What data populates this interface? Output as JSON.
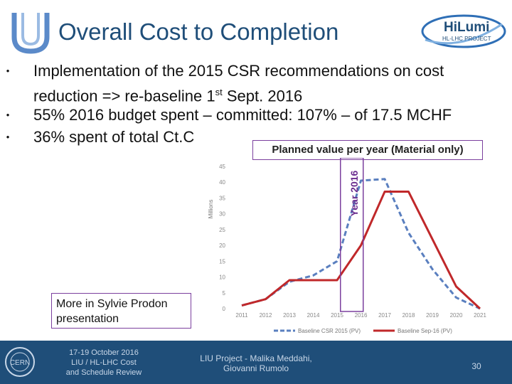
{
  "header": {
    "title": "Overall Cost to Completion",
    "left_logo": "cern-u-logo",
    "right_logo": {
      "name": "HiLumi",
      "subtitle": "HL-LHC PROJECT"
    }
  },
  "bullets": [
    {
      "line1": "Implementation of the 2015 CSR recommendations on cost",
      "line2_pre": "reduction => re-baseline 1",
      "line2_sup": "st",
      "line2_post": " Sept. 2016"
    },
    {
      "text": "55% 2016 budget spent – committed: 107% – of 17.5 MCHF"
    },
    {
      "text": "36% spent of total Ct.C"
    }
  ],
  "chart_callout": "Planned value per year (Material only)",
  "year_highlight_label": "Year 2016",
  "more_note": "More in Sylvie Prodon presentation",
  "chart_data": {
    "type": "line",
    "x": [
      "2011",
      "2012",
      "2013",
      "2014",
      "2015",
      "2016",
      "2017",
      "2018",
      "2019",
      "2020",
      "2021"
    ],
    "ylabel": "Millions",
    "ylim": [
      0,
      45
    ],
    "yticks": [
      0,
      5,
      10,
      15,
      20,
      25,
      30,
      35,
      40,
      45
    ],
    "highlight_x": "2016",
    "legend_position": "bottom",
    "series": [
      {
        "name": "Baseline CSR 2015 (PV)",
        "color": "#5a7fbf",
        "dash": true,
        "values": [
          1,
          3,
          8.5,
          10.5,
          15,
          40.5,
          41,
          24,
          12.5,
          3.5,
          0
        ]
      },
      {
        "name": "Baseline Sep-16 (PV)",
        "color": "#c0282a",
        "dash": false,
        "values": [
          1,
          3,
          9,
          9,
          9,
          20,
          37,
          37,
          22,
          7,
          0
        ]
      }
    ]
  },
  "footer": {
    "logo": "cern-logo",
    "conference": [
      "17-19 October 2016",
      "LIU / HL-LHC  Cost",
      "and Schedule Review"
    ],
    "author": [
      "LIU Project - Malika Meddahi,",
      "Giovanni Rumolo"
    ],
    "page": "30"
  }
}
